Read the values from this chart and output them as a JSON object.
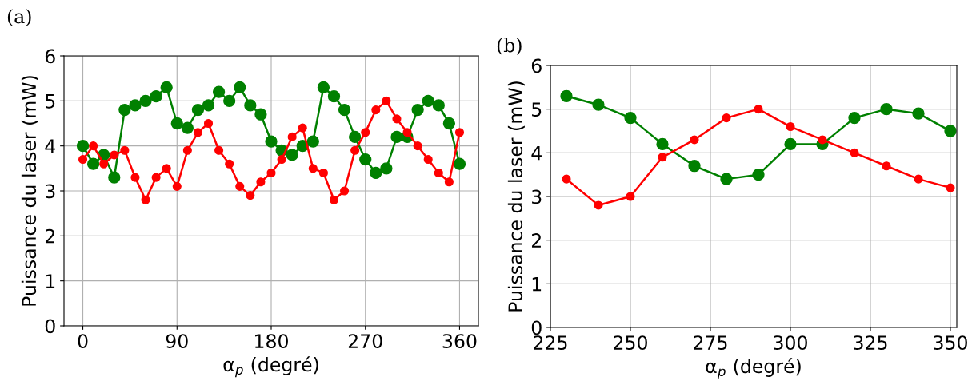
{
  "chart_data": [
    {
      "type": "line",
      "title": "(a)",
      "xlabel": "α$_{p}$ (degré)",
      "ylabel": "Puissance du laser (mW)",
      "x": [
        0,
        10,
        20,
        30,
        40,
        50,
        60,
        70,
        80,
        90,
        100,
        110,
        120,
        130,
        140,
        150,
        160,
        170,
        180,
        190,
        200,
        210,
        220,
        230,
        240,
        250,
        260,
        270,
        280,
        290,
        300,
        310,
        320,
        330,
        340,
        350,
        360
      ],
      "series": [
        {
          "color": "#008000",
          "values": [
            4.0,
            3.6,
            3.8,
            3.3,
            4.8,
            4.9,
            5.0,
            5.1,
            5.3,
            4.5,
            4.4,
            4.8,
            4.9,
            5.2,
            5.0,
            5.3,
            4.9,
            4.7,
            4.1,
            3.9,
            3.8,
            4.0,
            4.1,
            5.3,
            5.1,
            4.8,
            4.2,
            3.7,
            3.4,
            3.5,
            4.2,
            4.2,
            4.8,
            5.0,
            4.9,
            4.5,
            3.6
          ]
        },
        {
          "color": "#ff0000",
          "values": [
            3.7,
            4.0,
            3.6,
            3.8,
            3.9,
            3.3,
            2.8,
            3.3,
            3.5,
            3.1,
            3.9,
            4.3,
            4.5,
            3.9,
            3.6,
            3.1,
            2.9,
            3.2,
            3.4,
            3.7,
            4.2,
            4.4,
            3.5,
            3.4,
            2.8,
            3.0,
            3.9,
            4.3,
            4.8,
            5.0,
            4.6,
            4.3,
            4.0,
            3.7,
            3.4,
            3.2,
            4.3
          ]
        }
      ],
      "xlim": [
        -18,
        378
      ],
      "xticks": [
        0,
        90,
        180,
        270,
        360
      ],
      "ylim": [
        0,
        6
      ],
      "yticks": [
        0,
        1,
        2,
        3,
        4,
        5,
        6
      ],
      "grid": true,
      "marker": "circle",
      "line_style": "solid"
    },
    {
      "type": "line",
      "title": "(b)",
      "xlabel": "α$_{p}$ (degré)",
      "ylabel": "Puissance du laser (mW)",
      "x": [
        230,
        240,
        250,
        260,
        270,
        280,
        290,
        300,
        310,
        320,
        330,
        340,
        350
      ],
      "series": [
        {
          "color": "#008000",
          "values": [
            5.3,
            5.1,
            4.8,
            4.2,
            3.7,
            3.4,
            3.5,
            4.2,
            4.2,
            4.8,
            5.0,
            4.9,
            4.5
          ]
        },
        {
          "color": "#ff0000",
          "values": [
            3.4,
            2.8,
            3.0,
            3.9,
            4.3,
            4.8,
            5.0,
            4.6,
            4.3,
            4.0,
            3.7,
            3.4,
            3.2
          ]
        }
      ],
      "xlim": [
        225,
        352
      ],
      "xticks": [
        225,
        250,
        275,
        300,
        325,
        350
      ],
      "ylim": [
        0,
        6
      ],
      "yticks": [
        0,
        1,
        2,
        3,
        4,
        5,
        6
      ],
      "grid": true,
      "marker": "circle",
      "line_style": "solid"
    }
  ]
}
